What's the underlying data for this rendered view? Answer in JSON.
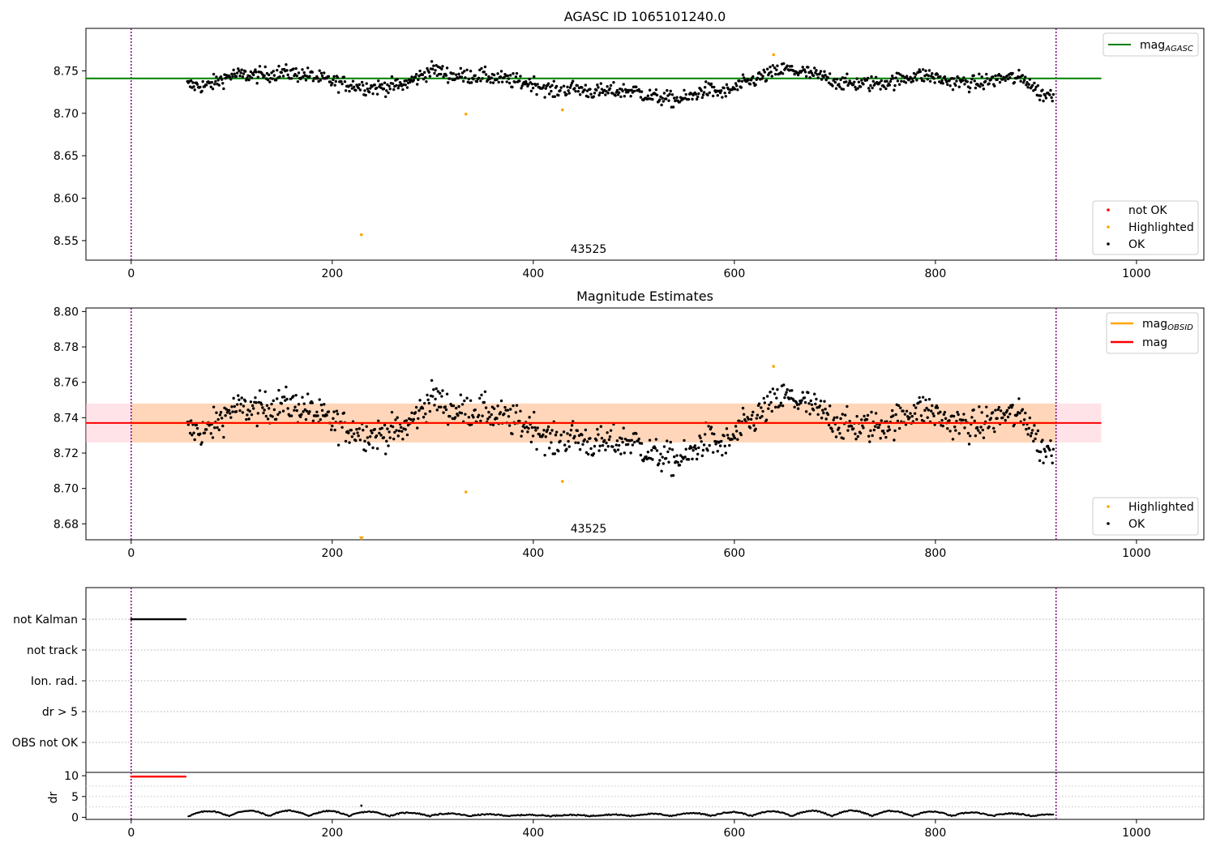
{
  "chart_data": [
    {
      "type": "scatter",
      "title": "AGASC ID 1065101240.0",
      "xlim": [
        -45,
        1067
      ],
      "ylim": [
        8.527,
        8.8
      ],
      "xticks": [
        0,
        200,
        400,
        600,
        800,
        1000
      ],
      "yticks": [
        8.55,
        8.6,
        8.65,
        8.7,
        8.75
      ],
      "ytick_labels": [
        "8.55",
        "8.60",
        "8.65",
        "8.70",
        "8.75"
      ],
      "obsid_label": "43525",
      "obsid_x": 455,
      "obs_bounds": [
        0,
        920
      ],
      "mag_agasc": 8.741,
      "mag_line_x": [
        -45,
        965
      ],
      "highlighted": [
        {
          "x": 229,
          "y": 8.557
        },
        {
          "x": 333,
          "y": 8.699
        },
        {
          "x": 429,
          "y": 8.704
        },
        {
          "x": 639,
          "y": 8.769
        }
      ],
      "line_legend": {
        "entries": [
          {
            "label": "mag",
            "sub": "AGASC",
            "color": "#008000"
          }
        ],
        "placement": "top-right"
      },
      "point_legend": {
        "entries": [
          {
            "label": "not OK",
            "color": "#ff0000"
          },
          {
            "label": "Highlighted",
            "color": "#ffa500"
          },
          {
            "label": "OK",
            "color": "#000000"
          }
        ],
        "placement": "bottom-right"
      }
    },
    {
      "type": "scatter",
      "title": "Magnitude Estimates",
      "xlim": [
        -45,
        1067
      ],
      "ylim": [
        8.671,
        8.802
      ],
      "xticks": [
        0,
        200,
        400,
        600,
        800,
        1000
      ],
      "yticks": [
        8.68,
        8.7,
        8.72,
        8.74,
        8.76,
        8.78,
        8.8
      ],
      "ytick_labels": [
        "8.68",
        "8.70",
        "8.72",
        "8.74",
        "8.76",
        "8.78",
        "8.80"
      ],
      "obsid_label": "43525",
      "obsid_x": 455,
      "obs_bounds": [
        0,
        920
      ],
      "mag_obsid": 8.737,
      "mag": 8.737,
      "mag_band": [
        8.726,
        8.748
      ],
      "mag_line_x": [
        -45,
        965
      ],
      "highlighted": [
        {
          "x": 333,
          "y": 8.698
        },
        {
          "x": 429,
          "y": 8.704
        },
        {
          "x": 639,
          "y": 8.769
        }
      ],
      "clipped_marker": {
        "x": 229,
        "y": 8.672
      },
      "line_legend": {
        "entries": [
          {
            "label": "mag",
            "sub": "OBSID",
            "color": "#ffa500"
          },
          {
            "label": "mag",
            "sub": "",
            "color": "#ff0000"
          }
        ],
        "placement": "top-right"
      },
      "point_legend": {
        "entries": [
          {
            "label": "Highlighted",
            "color": "#ffa500"
          },
          {
            "label": "OK",
            "color": "#000000"
          }
        ],
        "placement": "bottom-right"
      }
    },
    {
      "type": "scatter",
      "xlim": [
        -45,
        1067
      ],
      "flag_labels": [
        "not Kalman",
        "not track",
        "Ion. rad.",
        "dr > 5",
        "OBS not OK"
      ],
      "not_kalman_x": [
        0,
        55
      ],
      "obs_bounds": [
        0,
        920
      ]
    },
    {
      "type": "scatter",
      "ylabel": "dr",
      "xlim": [
        -45,
        1067
      ],
      "ylim": [
        -0.5,
        10.8
      ],
      "xticks": [
        0,
        200,
        400,
        600,
        800,
        1000
      ],
      "yticks": [
        0,
        5,
        10
      ],
      "ytick_labels": [
        "0",
        "5",
        "10"
      ],
      "obs_bounds": [
        0,
        920
      ],
      "clipped_x": [
        0,
        55
      ],
      "clipped_y": 9.8,
      "outlier": {
        "x": 229,
        "y": 2.8
      }
    }
  ],
  "colors": {
    "ok": "#000000",
    "highlighted": "#ffa500",
    "not_ok": "#ff0000",
    "agasc_line": "#008000",
    "mag_line": "#ff0000",
    "obs_bound": "#800080",
    "band_fill": "#ffc0cb"
  }
}
